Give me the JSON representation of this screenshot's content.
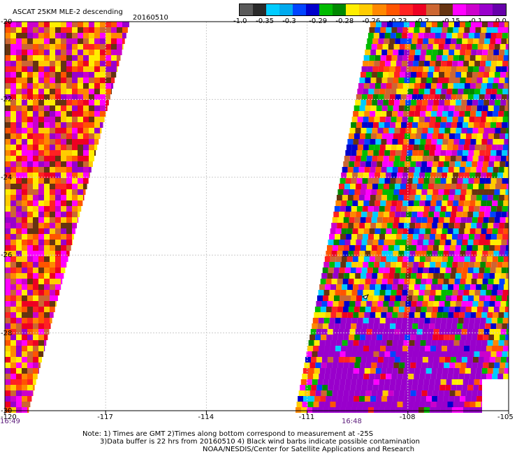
{
  "header": {
    "title": "ASCAT 25KM MLE-2 descending",
    "date": "20160510"
  },
  "colorbar": {
    "colors": [
      "#5a5a5a",
      "#2a2a2a",
      "#00ccff",
      "#00aaee",
      "#0044ff",
      "#0000cc",
      "#00bb00",
      "#008800",
      "#ffee00",
      "#ffcc00",
      "#ff8800",
      "#ff5500",
      "#ff2222",
      "#ee0022",
      "#cc6633",
      "#663311",
      "#ff00ff",
      "#cc00cc",
      "#9900cc",
      "#6600aa"
    ],
    "labels": [
      "-1.0",
      "-0.35",
      "-0.3",
      "-0.29",
      "-0.28",
      "-0.26",
      "-0.23",
      "-0.2",
      "-0.15",
      "-0.1",
      "0.0"
    ]
  },
  "axes": {
    "x_ticks": [
      "-120",
      "-117",
      "-114",
      "-111",
      "-108",
      "-105"
    ],
    "y_ticks": [
      "-20",
      "-22",
      "-24",
      "-26",
      "-28",
      "-30"
    ],
    "x_range": [
      -120,
      -105
    ],
    "y_range": [
      -30,
      -20
    ]
  },
  "pass_times": [
    "16:49",
    "16:48"
  ],
  "notes": {
    "line1": "Note: 1) Times are GMT 2)Times along bottom correspond to measurement at -25S",
    "line2": "3)Data buffer is 22 hrs from 20160510 4) Black wind barbs indicate possible contamination",
    "line3": "NOAA/NESDIS/Center for Satellite Applications and Research"
  },
  "swath_colors": [
    "#ff2222",
    "#ff5500",
    "#ff8800",
    "#ffcc00",
    "#ffee00",
    "#ff00ff",
    "#cc00cc",
    "#9900cc",
    "#cc6633",
    "#663311",
    "#ee0022",
    "#00bb00",
    "#008800",
    "#0044ff",
    "#0000cc",
    "#00ccff"
  ]
}
